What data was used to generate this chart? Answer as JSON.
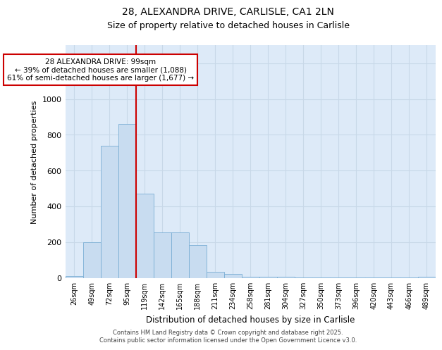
{
  "title_line1": "28, ALEXANDRA DRIVE, CARLISLE, CA1 2LN",
  "title_line2": "Size of property relative to detached houses in Carlisle",
  "xlabel": "Distribution of detached houses by size in Carlisle",
  "ylabel": "Number of detached properties",
  "categories": [
    "26sqm",
    "49sqm",
    "72sqm",
    "95sqm",
    "119sqm",
    "142sqm",
    "165sqm",
    "188sqm",
    "211sqm",
    "234sqm",
    "258sqm",
    "281sqm",
    "304sqm",
    "327sqm",
    "350sqm",
    "373sqm",
    "396sqm",
    "420sqm",
    "443sqm",
    "466sqm",
    "489sqm"
  ],
  "values": [
    10,
    200,
    740,
    860,
    470,
    255,
    255,
    185,
    35,
    20,
    5,
    5,
    5,
    2,
    2,
    2,
    2,
    2,
    2,
    2,
    5
  ],
  "bar_color": "#c8dcf0",
  "bar_edge_color": "#7aaed4",
  "grid_color": "#c8d8e8",
  "plot_bg_color": "#ddeaf8",
  "figure_bg_color": "#ffffff",
  "vline_index": 3,
  "vline_color": "#cc0000",
  "annotation_text": "28 ALEXANDRA DRIVE: 99sqm\n← 39% of detached houses are smaller (1,088)\n61% of semi-detached houses are larger (1,677) →",
  "annotation_box_facecolor": "#ffffff",
  "annotation_box_edgecolor": "#cc0000",
  "ylim": [
    0,
    1300
  ],
  "yticks": [
    0,
    200,
    400,
    600,
    800,
    1000,
    1200
  ],
  "footer_line1": "Contains HM Land Registry data © Crown copyright and database right 2025.",
  "footer_line2": "Contains public sector information licensed under the Open Government Licence v3.0."
}
